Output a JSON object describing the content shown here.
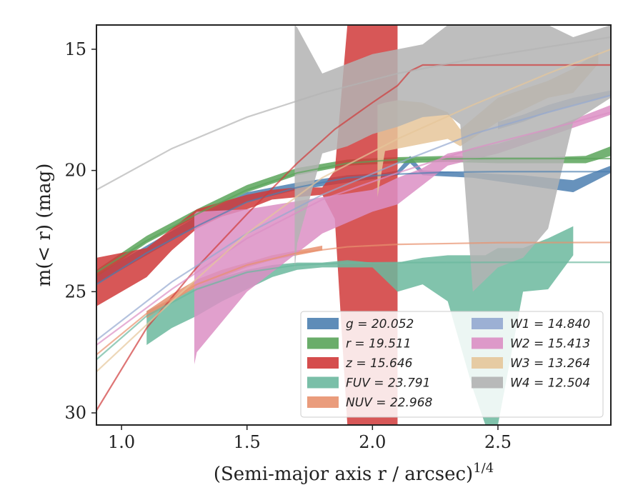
{
  "chart_data": {
    "type": "area",
    "xlabel": "(Semi-major axis r / arcsec)",
    "xlabel_superscript": "1/4",
    "ylabel": "m(< r) (mag)",
    "xlim": [
      0.9,
      2.95
    ],
    "ylim": [
      30.5,
      14.0
    ],
    "y_inverted": true,
    "x_ticks": [
      1.0,
      1.5,
      2.0,
      2.5
    ],
    "x_tick_labels": [
      "1.0",
      "1.5",
      "2.0",
      "2.5"
    ],
    "y_ticks": [
      15,
      20,
      25,
      30
    ],
    "y_tick_labels": [
      "15",
      "20",
      "25",
      "30"
    ],
    "grid": false,
    "legend_location": "lower-right",
    "legend_columns": 2,
    "series": [
      {
        "name": "g = 20.052",
        "band": "g",
        "value": "20.052",
        "color": "#4c7fb0",
        "band_x": [
          0.9,
          1.1,
          1.3,
          1.5,
          1.7,
          1.9,
          2.05,
          2.1,
          2.15,
          2.2,
          2.4,
          2.6,
          2.8,
          2.95
        ],
        "band_lo": [
          24.7,
          23.5,
          22.3,
          21.3,
          20.8,
          20.5,
          20.3,
          20.2,
          19.7,
          20.2,
          20.3,
          20.6,
          20.9,
          20.1
        ],
        "band_hi": [
          24.3,
          23.1,
          21.9,
          20.9,
          20.5,
          20.2,
          20.1,
          20.0,
          19.4,
          20.0,
          20.1,
          20.2,
          20.4,
          19.8
        ],
        "model_x": [
          0.9,
          1.1,
          1.3,
          1.5,
          1.7,
          1.9,
          2.1,
          2.3,
          2.5,
          2.7,
          2.95
        ],
        "model_y": [
          24.7,
          23.4,
          22.3,
          21.3,
          20.7,
          20.3,
          20.15,
          20.07,
          20.05,
          20.05,
          20.05
        ]
      },
      {
        "name": "r = 19.511",
        "band": "r",
        "value": "19.511",
        "color": "#5aa45a",
        "band_x": [
          0.9,
          1.1,
          1.3,
          1.5,
          1.7,
          1.9,
          2.1,
          2.3,
          2.5,
          2.7,
          2.85,
          2.95
        ],
        "band_lo": [
          24.4,
          23.0,
          21.9,
          20.9,
          20.2,
          19.8,
          19.7,
          19.65,
          19.7,
          19.7,
          19.7,
          19.4
        ],
        "band_hi": [
          24.1,
          22.7,
          21.6,
          20.6,
          19.9,
          19.55,
          19.45,
          19.4,
          19.45,
          19.45,
          19.4,
          19.0
        ],
        "model_x": [
          0.9,
          1.1,
          1.3,
          1.5,
          1.7,
          1.9,
          2.1,
          2.3,
          2.5,
          2.7,
          2.95
        ],
        "model_y": [
          24.2,
          22.9,
          21.8,
          20.8,
          20.1,
          19.7,
          19.55,
          19.52,
          19.51,
          19.51,
          19.51
        ]
      },
      {
        "name": "z = 15.646",
        "band": "z",
        "value": "15.646",
        "color": "#d03a3a",
        "band_x": [
          0.9,
          1.0,
          1.1,
          1.2,
          1.3,
          1.4,
          1.5,
          1.6,
          1.7,
          1.8,
          1.85,
          1.9,
          1.95,
          2.0,
          2.05,
          2.1
        ],
        "band_lo": [
          25.6,
          25.0,
          24.4,
          23.3,
          22.4,
          21.9,
          21.6,
          21.2,
          21.1,
          21.0,
          22.0,
          30.5,
          30.5,
          30.5,
          30.5,
          30.5
        ],
        "band_hi": [
          23.6,
          23.4,
          23.2,
          22.4,
          21.6,
          21.3,
          21.0,
          20.8,
          20.7,
          20.7,
          20.0,
          14.0,
          14.0,
          14.0,
          14.0,
          14.0
        ],
        "model_x": [
          0.9,
          1.1,
          1.3,
          1.5,
          1.7,
          1.85,
          2.0,
          2.1,
          2.15,
          2.2,
          2.4,
          2.95
        ],
        "model_y": [
          29.9,
          26.5,
          24.0,
          21.8,
          19.7,
          18.3,
          17.2,
          16.5,
          15.9,
          15.65,
          15.65,
          15.65
        ]
      },
      {
        "name": "FUV = 23.791",
        "band": "FUV",
        "value": "23.791",
        "color": "#6bb89e",
        "band_x": [
          1.1,
          1.2,
          1.3,
          1.4,
          1.5,
          1.6,
          1.7,
          1.8,
          1.9,
          2.0,
          2.1,
          2.2,
          2.3,
          2.4,
          2.45,
          2.5,
          2.6,
          2.7,
          2.8
        ],
        "band_lo": [
          27.2,
          26.5,
          26.0,
          25.4,
          24.9,
          24.4,
          24.1,
          24.0,
          24.0,
          24.0,
          25.0,
          24.7,
          25.4,
          29.0,
          30.5,
          30.5,
          25.0,
          24.9,
          23.5
        ],
        "band_hi": [
          25.8,
          25.3,
          24.8,
          24.4,
          24.1,
          23.9,
          23.8,
          23.8,
          23.7,
          23.8,
          23.8,
          23.6,
          23.5,
          23.5,
          23.5,
          23.2,
          23.2,
          22.8,
          22.3
        ],
        "model_x": [
          0.9,
          1.1,
          1.3,
          1.5,
          1.7,
          1.9,
          2.1,
          2.5,
          2.95
        ],
        "model_y": [
          27.8,
          26.0,
          24.9,
          24.2,
          23.9,
          23.82,
          23.8,
          23.79,
          23.79
        ]
      },
      {
        "name": "NUV = 22.968",
        "band": "NUV",
        "value": "22.968",
        "color": "#e8916e",
        "band_x": [
          1.1,
          1.2,
          1.3,
          1.4,
          1.5,
          1.6,
          1.7,
          1.8
        ],
        "band_lo": [
          26.1,
          25.4,
          24.8,
          24.4,
          24.0,
          23.7,
          23.5,
          23.3
        ],
        "band_hi": [
          25.8,
          25.1,
          24.5,
          24.1,
          23.8,
          23.5,
          23.3,
          23.1
        ],
        "model_x": [
          0.9,
          1.1,
          1.3,
          1.5,
          1.7,
          1.9,
          2.1,
          2.5,
          2.95
        ],
        "model_y": [
          27.6,
          25.9,
          24.7,
          23.9,
          23.4,
          23.15,
          23.05,
          22.98,
          22.97
        ]
      },
      {
        "name": "W1 = 14.840",
        "band": "W1",
        "value": "14.840",
        "color": "#94a8d0",
        "band_x": [
          2.5,
          2.6,
          2.7,
          2.8,
          2.95
        ],
        "band_lo": [
          18.3,
          18.0,
          17.6,
          17.3,
          16.9
        ],
        "band_hi": [
          18.0,
          17.7,
          17.3,
          17.0,
          16.7
        ],
        "model_x": [
          0.9,
          1.2,
          1.5,
          1.8,
          2.1,
          2.4,
          2.7,
          2.95
        ],
        "model_y": [
          27.0,
          24.6,
          22.6,
          21.0,
          19.7,
          18.5,
          17.6,
          16.9
        ]
      },
      {
        "name": "W2 = 15.413",
        "band": "W2",
        "value": "15.413",
        "color": "#dc8fc4",
        "band_x": [
          1.29,
          1.3,
          1.5,
          1.8,
          2.0,
          2.1,
          2.2,
          2.3,
          2.5,
          2.7,
          2.95
        ],
        "band_lo": [
          28.0,
          27.5,
          25.0,
          22.6,
          21.7,
          21.4,
          20.6,
          19.8,
          19.3,
          18.6,
          17.7
        ],
        "band_hi": [
          21.8,
          21.7,
          21.6,
          21.1,
          20.8,
          20.3,
          19.9,
          19.3,
          18.9,
          18.3,
          17.3
        ],
        "model_x": [
          0.9,
          1.2,
          1.5,
          1.8,
          2.1,
          2.4,
          2.7,
          2.95
        ],
        "model_y": [
          27.2,
          24.9,
          22.8,
          21.2,
          20.1,
          19.1,
          18.3,
          17.6
        ]
      },
      {
        "name": "W3 = 13.264",
        "band": "W3",
        "value": "13.264",
        "color": "#e6c69a",
        "band_x": [
          2.02,
          2.05,
          2.1,
          2.2,
          2.3,
          2.35,
          2.5,
          2.7,
          2.8,
          2.9
        ],
        "band_lo": [
          21.1,
          19.2,
          19.1,
          18.9,
          18.7,
          19.0,
          18.0,
          17.0,
          16.8,
          15.6
        ],
        "band_hi": [
          17.3,
          17.2,
          17.1,
          17.2,
          17.6,
          18.3,
          17.0,
          16.3,
          15.8,
          15.1
        ],
        "model_x": [
          0.9,
          1.2,
          1.5,
          1.8,
          2.1,
          2.4,
          2.7,
          2.95
        ],
        "model_y": [
          28.3,
          25.4,
          22.6,
          20.3,
          18.7,
          17.3,
          16.0,
          15.0
        ]
      },
      {
        "name": "W4 = 12.504",
        "band": "W4",
        "value": "12.504",
        "color": "#b3b3b3",
        "band_x": [
          1.69,
          1.7,
          1.8,
          1.9,
          2.0,
          2.1,
          2.2,
          2.3,
          2.35,
          2.4,
          2.5,
          2.6,
          2.7,
          2.8,
          2.95
        ],
        "band_lo": [
          24.1,
          23.0,
          19.3,
          19.0,
          18.5,
          18.2,
          17.8,
          17.7,
          18.1,
          25.0,
          24.0,
          23.6,
          22.4,
          18.0,
          17.0
        ],
        "band_hi": [
          14.0,
          14.1,
          16.0,
          15.6,
          15.2,
          15.0,
          14.8,
          14.0,
          14.0,
          14.0,
          14.0,
          14.0,
          14.0,
          14.5,
          14.0
        ],
        "model_x": [
          0.9,
          1.2,
          1.5,
          1.8,
          2.1,
          2.4,
          2.7,
          2.95
        ],
        "model_y": [
          20.8,
          19.1,
          17.8,
          16.8,
          16.0,
          15.4,
          14.9,
          14.5
        ]
      }
    ],
    "legend_order": [
      0,
      5,
      1,
      6,
      2,
      7,
      3,
      8,
      4
    ]
  }
}
